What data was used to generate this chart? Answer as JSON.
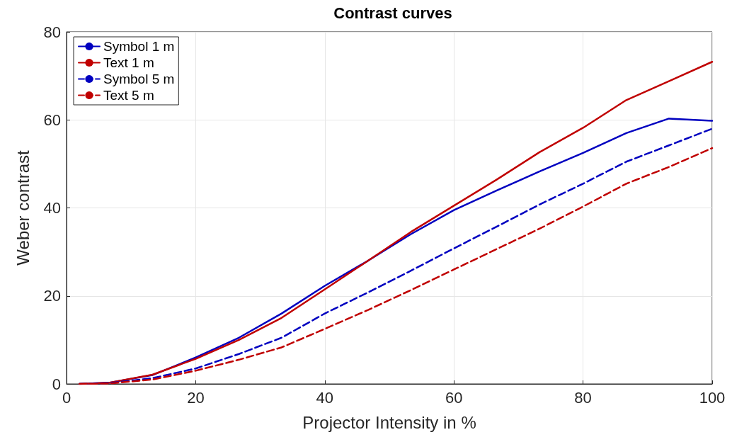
{
  "chart_data": {
    "type": "line",
    "title": "Contrast curves",
    "xlabel": "Projector Intensity in %",
    "ylabel": "Weber contrast",
    "x": [
      2,
      6.7,
      13.3,
      20,
      26.7,
      33.3,
      40,
      46.7,
      53.3,
      60,
      66.7,
      73.3,
      80,
      86.7,
      93.3,
      100
    ],
    "series": [
      {
        "name": "Symbol 1 m",
        "color": "#0000c0",
        "line_style": "solid",
        "values": [
          0,
          0.3,
          2,
          6,
          10.5,
          16,
          22.3,
          28,
          34,
          39.5,
          44,
          48.3,
          52.5,
          57,
          60.3,
          59.8
        ]
      },
      {
        "name": "Text 1 m",
        "color": "#c00000",
        "line_style": "solid",
        "values": [
          0,
          0.3,
          2.1,
          5.7,
          10,
          15,
          21.5,
          28,
          34.5,
          40.5,
          46.5,
          52.7,
          58.2,
          64.5,
          68.8,
          73.2
        ]
      },
      {
        "name": "Symbol 5 m",
        "color": "#0000c0",
        "line_style": "dashed",
        "values": [
          0,
          0.2,
          1.3,
          3.5,
          6.8,
          10.5,
          16,
          20.8,
          25.7,
          30.8,
          35.8,
          40.8,
          45.5,
          50.5,
          54.2,
          58
        ]
      },
      {
        "name": "Text 5 m",
        "color": "#c00000",
        "line_style": "dashed",
        "values": [
          0,
          0.1,
          1,
          3,
          5.5,
          8.3,
          12.5,
          16.8,
          21.3,
          26,
          30.7,
          35.3,
          40.3,
          45.5,
          49.3,
          53.6
        ]
      }
    ],
    "xlim": [
      0,
      100
    ],
    "xticks": [
      0,
      20,
      40,
      60,
      80,
      100
    ],
    "ylim": [
      0,
      80
    ],
    "yticks": [
      0,
      20,
      40,
      60,
      80
    ],
    "grid": true,
    "legend": "top left",
    "marker": "none"
  }
}
